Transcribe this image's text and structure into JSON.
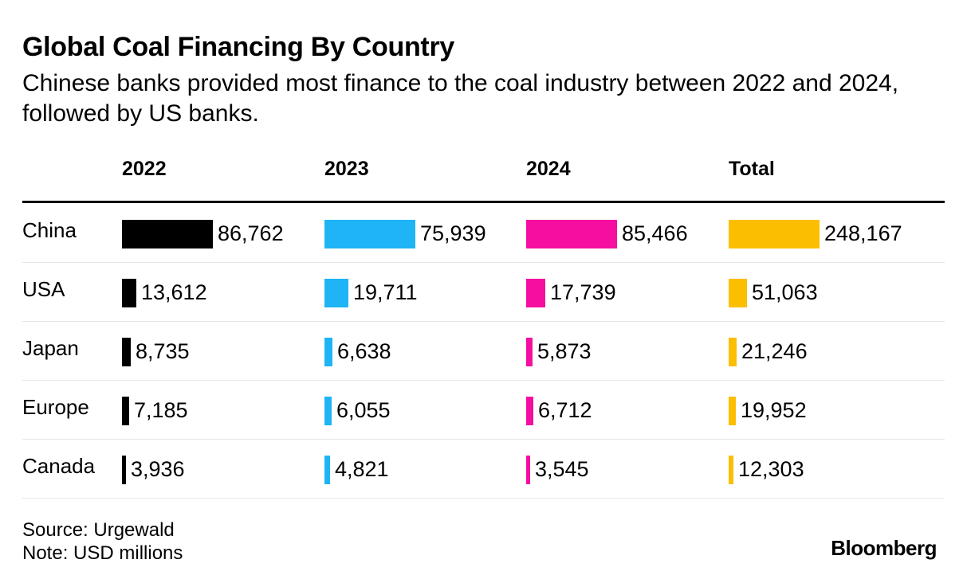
{
  "title": "Global Coal Financing By Country",
  "subtitle": "Chinese banks provided most finance to the coal industry between 2022 and 2024, followed by US banks.",
  "footer": {
    "source": "Source: Urgewald",
    "note": "Note: USD millions"
  },
  "logo": "Bloomberg",
  "colors": {
    "2022": "#000000",
    "2023": "#1eb4f5",
    "2024": "#f50fa0",
    "Total": "#fcbe00"
  },
  "chart_data": {
    "type": "table",
    "columns": [
      "2022",
      "2023",
      "2024",
      "Total"
    ],
    "rows": [
      {
        "country": "China",
        "values": [
          86762,
          75939,
          85466,
          248167
        ],
        "labels": [
          "86,762",
          "75,939",
          "85,466",
          "248,167"
        ]
      },
      {
        "country": "USA",
        "values": [
          13612,
          19711,
          17739,
          51063
        ],
        "labels": [
          "13,612",
          "19,711",
          "17,739",
          "51,063"
        ]
      },
      {
        "country": "Japan",
        "values": [
          8735,
          6638,
          5873,
          21246
        ],
        "labels": [
          "8,735",
          "6,638",
          "5,873",
          "21,246"
        ]
      },
      {
        "country": "Europe",
        "values": [
          7185,
          6055,
          6712,
          19952
        ],
        "labels": [
          "7,185",
          "6,055",
          "6,712",
          "19,952"
        ]
      },
      {
        "country": "Canada",
        "values": [
          3936,
          4821,
          3545,
          12303
        ],
        "labels": [
          "3,936",
          "4,821",
          "3,545",
          "12,303"
        ]
      }
    ]
  }
}
